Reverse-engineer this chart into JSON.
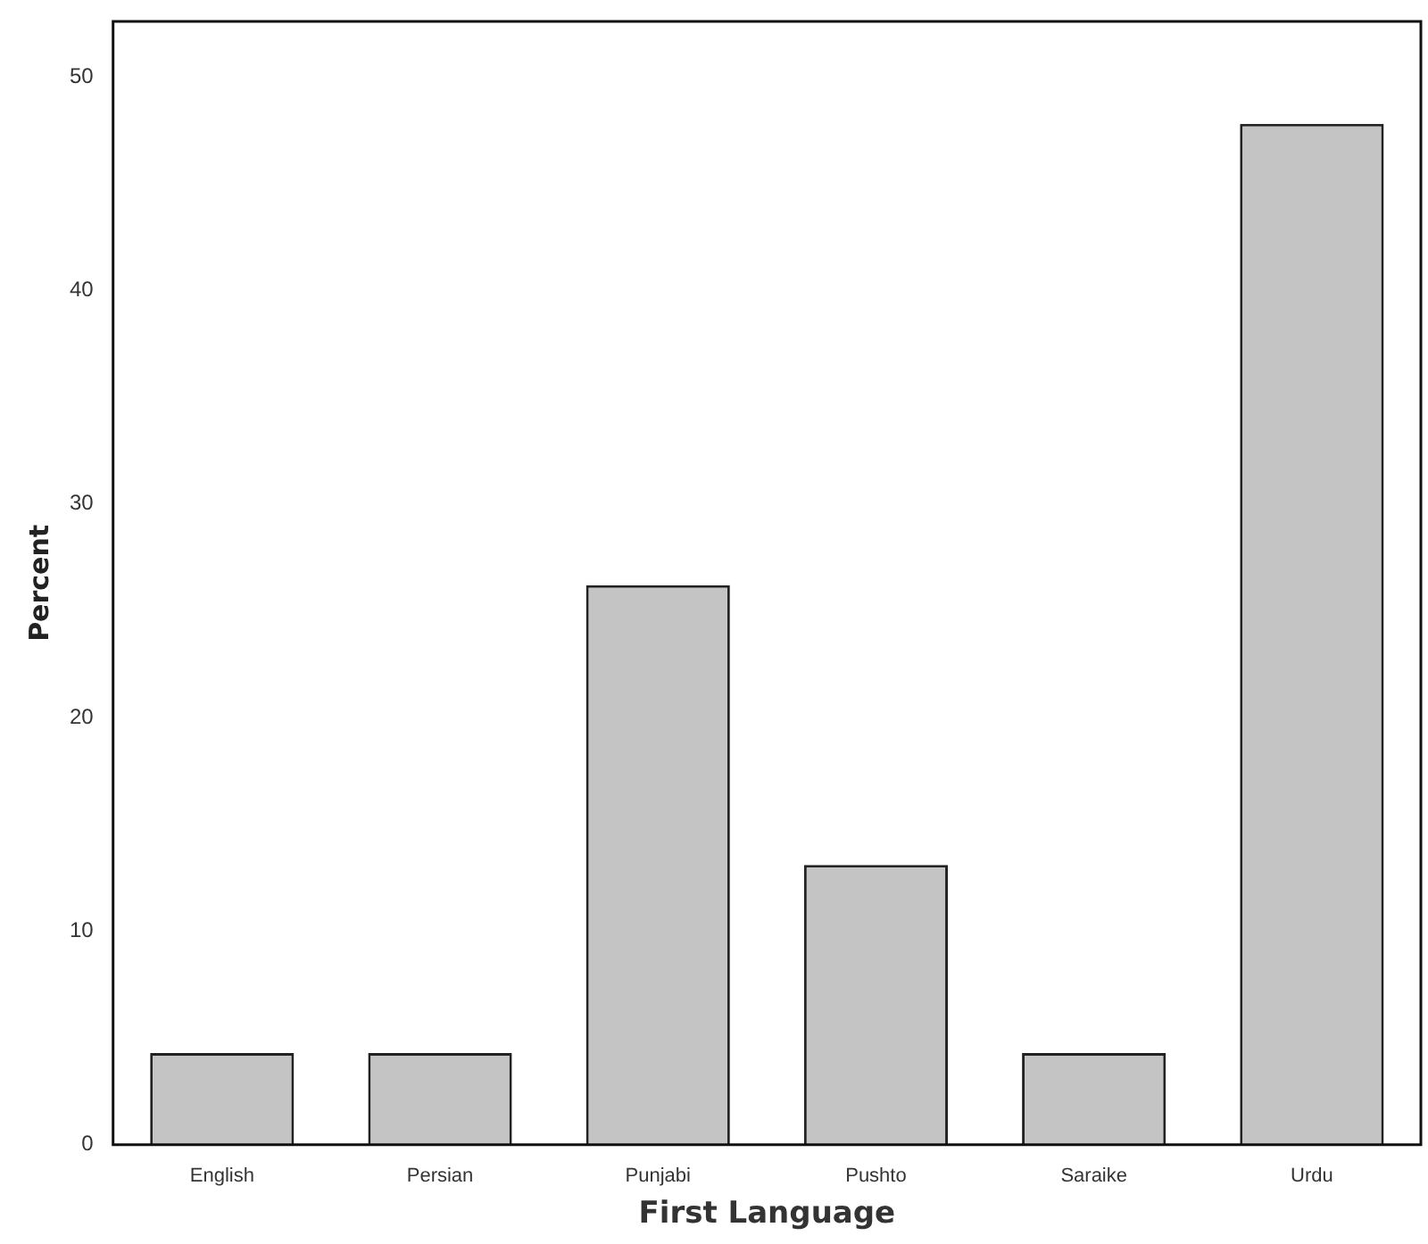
{
  "chart_data": {
    "type": "bar",
    "xlabel": "First Language",
    "ylabel": "Percent",
    "categories": [
      "English",
      "Persian",
      "Punjabi",
      "Pushto",
      "Saraike",
      "Urdu"
    ],
    "values": [
      4.3,
      4.3,
      26.2,
      13.1,
      4.3,
      47.8
    ],
    "color": "#c4c4c4",
    "ylim": [
      0,
      52.6
    ],
    "yticks": [
      0,
      10,
      20,
      30,
      40,
      50
    ],
    "grid": false,
    "legend": false
  }
}
